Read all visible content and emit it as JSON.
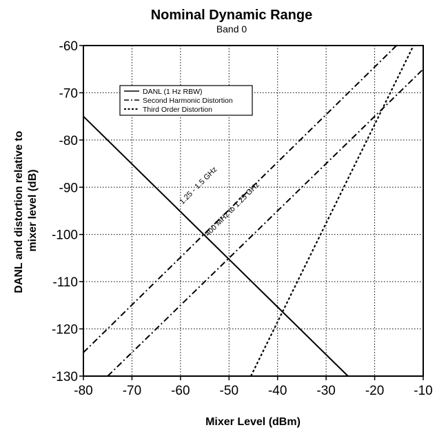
{
  "chart_data": {
    "type": "line",
    "title": "Nominal Dynamic Range",
    "subtitle": "Band 0",
    "xlabel": "Mixer Level (dBm)",
    "ylabel_lines": [
      "DANL and distortion  relative to",
      "mixer level (dB)"
    ],
    "xlim": [
      -80,
      -10
    ],
    "ylim": [
      -130,
      -60
    ],
    "xticks": [
      "-80",
      "-70",
      "-60",
      "-50",
      "-40",
      "-30",
      "-20",
      "-10"
    ],
    "yticks": [
      "-60",
      "-70",
      "-80",
      "-90",
      "-100",
      "-110",
      "-120",
      "-130"
    ],
    "grid": true,
    "legend_position": "top-left",
    "series": [
      {
        "name": "DANL (1 Hz RBW)",
        "style": "solid",
        "x": [
          -80,
          -25.5
        ],
        "y": [
          -75,
          -130
        ]
      },
      {
        "name": "Second Harmonic Distortion",
        "style": "dashdot",
        "x": [
          -80,
          -15.5
        ],
        "y": [
          -125,
          -60
        ]
      },
      {
        "name": "Second Harmonic Distortion",
        "style": "dashdot",
        "x": [
          -75,
          -10
        ],
        "y": [
          -130,
          -65
        ]
      },
      {
        "name": "Third Order Distortion",
        "style": "dotted",
        "x": [
          -45.5,
          -12
        ],
        "y": [
          -130,
          -60
        ]
      }
    ],
    "legend": [
      {
        "label": "DANL (1 Hz RBW)",
        "style": "solid"
      },
      {
        "label": "Second Harmonic Distortion",
        "style": "dashdot"
      },
      {
        "label": "Third Order Distortion",
        "style": "dotted"
      }
    ],
    "annotations": [
      {
        "text": "1.25 - 1.5 GHz",
        "x": -56,
        "y": -90,
        "angle": -45
      },
      {
        "text": "400 MHz to 1.25 GHz",
        "x": -49,
        "y": -95,
        "angle": -45
      }
    ]
  }
}
